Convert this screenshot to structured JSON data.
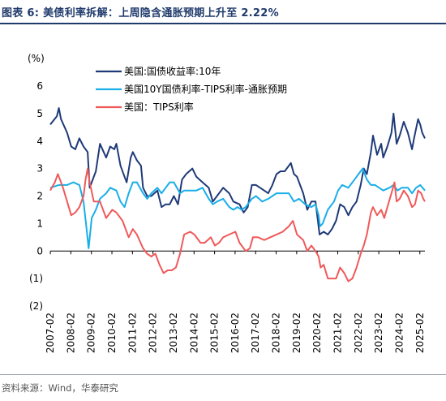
{
  "header": {
    "title": "图表 6:  美债利率拆解：上周隐含通胀预期上升至 2.22%"
  },
  "footer": {
    "source": "资料来源：Wind，华泰研究"
  },
  "chart_data": {
    "type": "line",
    "unit_label": "(%)",
    "ylim": [
      -2,
      6
    ],
    "yticks": [
      6,
      5,
      4,
      3,
      2,
      1,
      0,
      -1,
      -2
    ],
    "ytick_labels": [
      "6",
      "5",
      "4",
      "3",
      "2",
      "1",
      "0",
      "(1)",
      "(2)"
    ],
    "xlim": [
      2007.08,
      2025.33
    ],
    "xticks": [
      "2007-02",
      "2008-02",
      "2009-02",
      "2010-02",
      "2011-02",
      "2012-02",
      "2013-02",
      "2014-02",
      "2015-02",
      "2016-02",
      "2017-02",
      "2018-02",
      "2019-02",
      "2020-02",
      "2021-02",
      "2022-02",
      "2023-02",
      "2024-02",
      "2025-02"
    ],
    "series": [
      {
        "name": "美国:国债收益率:10年",
        "color": "#1f3a78",
        "points": [
          [
            2007.08,
            4.6
          ],
          [
            2007.4,
            4.9
          ],
          [
            2007.5,
            5.2
          ],
          [
            2007.6,
            4.8
          ],
          [
            2007.9,
            4.3
          ],
          [
            2008.1,
            3.8
          ],
          [
            2008.3,
            3.7
          ],
          [
            2008.5,
            4.1
          ],
          [
            2008.7,
            3.8
          ],
          [
            2008.9,
            3.6
          ],
          [
            2009.0,
            2.3
          ],
          [
            2009.1,
            2.5
          ],
          [
            2009.3,
            2.9
          ],
          [
            2009.5,
            3.9
          ],
          [
            2009.8,
            3.4
          ],
          [
            2010.0,
            3.8
          ],
          [
            2010.2,
            3.7
          ],
          [
            2010.3,
            3.9
          ],
          [
            2010.5,
            3.1
          ],
          [
            2010.7,
            2.7
          ],
          [
            2010.8,
            2.5
          ],
          [
            2011.0,
            3.4
          ],
          [
            2011.1,
            3.6
          ],
          [
            2011.3,
            3.3
          ],
          [
            2011.5,
            3.1
          ],
          [
            2011.6,
            2.3
          ],
          [
            2011.8,
            2.0
          ],
          [
            2012.0,
            2.0
          ],
          [
            2012.3,
            2.2
          ],
          [
            2012.5,
            1.6
          ],
          [
            2012.7,
            1.7
          ],
          [
            2012.9,
            1.7
          ],
          [
            2013.1,
            2.0
          ],
          [
            2013.3,
            1.7
          ],
          [
            2013.5,
            2.6
          ],
          [
            2013.7,
            2.8
          ],
          [
            2014.0,
            3.0
          ],
          [
            2014.2,
            2.7
          ],
          [
            2014.5,
            2.5
          ],
          [
            2014.8,
            2.3
          ],
          [
            2015.0,
            1.8
          ],
          [
            2015.2,
            2.0
          ],
          [
            2015.5,
            2.3
          ],
          [
            2015.8,
            2.1
          ],
          [
            2016.0,
            1.8
          ],
          [
            2016.3,
            1.7
          ],
          [
            2016.5,
            1.4
          ],
          [
            2016.7,
            1.6
          ],
          [
            2016.9,
            2.4
          ],
          [
            2017.1,
            2.4
          ],
          [
            2017.3,
            2.3
          ],
          [
            2017.5,
            2.2
          ],
          [
            2017.7,
            2.1
          ],
          [
            2017.9,
            2.4
          ],
          [
            2018.1,
            2.8
          ],
          [
            2018.3,
            2.9
          ],
          [
            2018.5,
            2.9
          ],
          [
            2018.8,
            3.2
          ],
          [
            2018.95,
            2.8
          ],
          [
            2019.1,
            2.7
          ],
          [
            2019.4,
            2.1
          ],
          [
            2019.6,
            1.5
          ],
          [
            2019.8,
            1.8
          ],
          [
            2020.0,
            1.8
          ],
          [
            2020.1,
            1.2
          ],
          [
            2020.2,
            0.6
          ],
          [
            2020.4,
            0.7
          ],
          [
            2020.6,
            0.6
          ],
          [
            2020.8,
            0.8
          ],
          [
            2021.0,
            1.1
          ],
          [
            2021.2,
            1.7
          ],
          [
            2021.4,
            1.6
          ],
          [
            2021.6,
            1.3
          ],
          [
            2021.8,
            1.6
          ],
          [
            2022.0,
            1.8
          ],
          [
            2022.2,
            2.4
          ],
          [
            2022.35,
            3.0
          ],
          [
            2022.5,
            2.8
          ],
          [
            2022.7,
            3.6
          ],
          [
            2022.8,
            4.2
          ],
          [
            2023.0,
            3.5
          ],
          [
            2023.2,
            3.9
          ],
          [
            2023.3,
            3.4
          ],
          [
            2023.5,
            3.8
          ],
          [
            2023.7,
            4.3
          ],
          [
            2023.8,
            5.0
          ],
          [
            2023.95,
            3.9
          ],
          [
            2024.1,
            4.2
          ],
          [
            2024.3,
            4.7
          ],
          [
            2024.5,
            4.3
          ],
          [
            2024.7,
            3.7
          ],
          [
            2024.8,
            4.1
          ],
          [
            2025.0,
            4.8
          ],
          [
            2025.1,
            4.6
          ],
          [
            2025.2,
            4.3
          ],
          [
            2025.33,
            4.1
          ]
        ]
      },
      {
        "name": "美国10Y国债利率-TIPS利率-通胀预期",
        "color": "#19aee8",
        "points": [
          [
            2007.08,
            2.3
          ],
          [
            2007.5,
            2.4
          ],
          [
            2007.9,
            2.4
          ],
          [
            2008.2,
            2.5
          ],
          [
            2008.5,
            2.4
          ],
          [
            2008.7,
            1.8
          ],
          [
            2008.85,
            0.8
          ],
          [
            2008.95,
            0.1
          ],
          [
            2009.1,
            1.2
          ],
          [
            2009.3,
            1.5
          ],
          [
            2009.5,
            1.9
          ],
          [
            2009.8,
            2.1
          ],
          [
            2010.0,
            2.3
          ],
          [
            2010.3,
            2.2
          ],
          [
            2010.5,
            1.8
          ],
          [
            2010.7,
            1.6
          ],
          [
            2010.9,
            2.1
          ],
          [
            2011.1,
            2.5
          ],
          [
            2011.3,
            2.5
          ],
          [
            2011.6,
            2.1
          ],
          [
            2011.8,
            1.9
          ],
          [
            2012.0,
            2.1
          ],
          [
            2012.3,
            2.3
          ],
          [
            2012.5,
            2.1
          ],
          [
            2012.7,
            2.3
          ],
          [
            2012.9,
            2.5
          ],
          [
            2013.1,
            2.5
          ],
          [
            2013.4,
            2.1
          ],
          [
            2013.6,
            2.2
          ],
          [
            2013.9,
            2.2
          ],
          [
            2014.2,
            2.2
          ],
          [
            2014.5,
            2.3
          ],
          [
            2014.8,
            1.9
          ],
          [
            2015.0,
            1.7
          ],
          [
            2015.2,
            1.8
          ],
          [
            2015.5,
            1.9
          ],
          [
            2015.8,
            1.6
          ],
          [
            2016.0,
            1.5
          ],
          [
            2016.2,
            1.6
          ],
          [
            2016.4,
            1.5
          ],
          [
            2016.6,
            1.6
          ],
          [
            2016.9,
            1.9
          ],
          [
            2017.1,
            2.0
          ],
          [
            2017.4,
            1.8
          ],
          [
            2017.7,
            1.9
          ],
          [
            2017.9,
            2.0
          ],
          [
            2018.1,
            2.1
          ],
          [
            2018.4,
            2.1
          ],
          [
            2018.7,
            2.1
          ],
          [
            2018.95,
            1.8
          ],
          [
            2019.2,
            1.9
          ],
          [
            2019.5,
            1.7
          ],
          [
            2019.8,
            1.6
          ],
          [
            2020.0,
            1.7
          ],
          [
            2020.15,
            1.3
          ],
          [
            2020.22,
            0.9
          ],
          [
            2020.35,
            1.0
          ],
          [
            2020.6,
            1.5
          ],
          [
            2020.9,
            1.8
          ],
          [
            2021.1,
            2.2
          ],
          [
            2021.3,
            2.4
          ],
          [
            2021.6,
            2.3
          ],
          [
            2021.9,
            2.6
          ],
          [
            2022.1,
            2.8
          ],
          [
            2022.3,
            3.0
          ],
          [
            2022.5,
            2.6
          ],
          [
            2022.7,
            2.4
          ],
          [
            2022.9,
            2.4
          ],
          [
            2023.1,
            2.3
          ],
          [
            2023.3,
            2.2
          ],
          [
            2023.6,
            2.3
          ],
          [
            2023.8,
            2.4
          ],
          [
            2024.0,
            2.2
          ],
          [
            2024.2,
            2.3
          ],
          [
            2024.5,
            2.3
          ],
          [
            2024.7,
            2.1
          ],
          [
            2024.9,
            2.3
          ],
          [
            2025.1,
            2.4
          ],
          [
            2025.33,
            2.2
          ]
        ]
      },
      {
        "name": "美国：TIPS利率",
        "color": "#f0595a",
        "points": [
          [
            2007.08,
            2.2
          ],
          [
            2007.3,
            2.5
          ],
          [
            2007.45,
            2.8
          ],
          [
            2007.7,
            2.3
          ],
          [
            2007.9,
            1.8
          ],
          [
            2008.1,
            1.3
          ],
          [
            2008.3,
            1.4
          ],
          [
            2008.5,
            1.6
          ],
          [
            2008.7,
            2.0
          ],
          [
            2008.8,
            2.6
          ],
          [
            2008.9,
            3.0
          ],
          [
            2009.0,
            2.5
          ],
          [
            2009.2,
            1.8
          ],
          [
            2009.5,
            1.8
          ],
          [
            2009.8,
            1.2
          ],
          [
            2010.1,
            1.5
          ],
          [
            2010.3,
            1.4
          ],
          [
            2010.6,
            1.1
          ],
          [
            2010.9,
            0.5
          ],
          [
            2011.1,
            0.8
          ],
          [
            2011.3,
            0.6
          ],
          [
            2011.6,
            0.1
          ],
          [
            2011.8,
            -0.1
          ],
          [
            2012.0,
            -0.2
          ],
          [
            2012.2,
            -0.1
          ],
          [
            2012.4,
            -0.5
          ],
          [
            2012.6,
            -0.8
          ],
          [
            2012.8,
            -0.7
          ],
          [
            2013.0,
            -0.7
          ],
          [
            2013.2,
            -0.6
          ],
          [
            2013.4,
            -0.1
          ],
          [
            2013.6,
            0.6
          ],
          [
            2013.9,
            0.7
          ],
          [
            2014.1,
            0.6
          ],
          [
            2014.4,
            0.3
          ],
          [
            2014.6,
            0.3
          ],
          [
            2014.9,
            0.5
          ],
          [
            2015.1,
            0.2
          ],
          [
            2015.3,
            0.3
          ],
          [
            2015.5,
            0.5
          ],
          [
            2015.8,
            0.6
          ],
          [
            2016.1,
            0.7
          ],
          [
            2016.3,
            0.3
          ],
          [
            2016.6,
            0.0
          ],
          [
            2016.8,
            0.1
          ],
          [
            2016.95,
            0.5
          ],
          [
            2017.2,
            0.5
          ],
          [
            2017.5,
            0.4
          ],
          [
            2017.8,
            0.5
          ],
          [
            2018.1,
            0.6
          ],
          [
            2018.4,
            0.7
          ],
          [
            2018.7,
            0.9
          ],
          [
            2018.9,
            1.1
          ],
          [
            2019.1,
            0.6
          ],
          [
            2019.4,
            0.4
          ],
          [
            2019.6,
            0.0
          ],
          [
            2019.8,
            0.2
          ],
          [
            2020.0,
            0.0
          ],
          [
            2020.15,
            -0.2
          ],
          [
            2020.25,
            -0.6
          ],
          [
            2020.4,
            -0.5
          ],
          [
            2020.6,
            -1.0
          ],
          [
            2020.8,
            -1.0
          ],
          [
            2021.0,
            -1.0
          ],
          [
            2021.2,
            -0.6
          ],
          [
            2021.4,
            -0.8
          ],
          [
            2021.6,
            -1.1
          ],
          [
            2021.8,
            -1.0
          ],
          [
            2022.0,
            -0.6
          ],
          [
            2022.2,
            -0.1
          ],
          [
            2022.35,
            0.2
          ],
          [
            2022.5,
            0.6
          ],
          [
            2022.7,
            1.4
          ],
          [
            2022.8,
            1.6
          ],
          [
            2023.0,
            1.3
          ],
          [
            2023.2,
            1.5
          ],
          [
            2023.35,
            1.2
          ],
          [
            2023.5,
            1.6
          ],
          [
            2023.7,
            2.1
          ],
          [
            2023.85,
            2.5
          ],
          [
            2023.95,
            1.8
          ],
          [
            2024.1,
            1.9
          ],
          [
            2024.3,
            2.2
          ],
          [
            2024.5,
            2.0
          ],
          [
            2024.7,
            1.6
          ],
          [
            2024.85,
            1.7
          ],
          [
            2025.0,
            2.2
          ],
          [
            2025.15,
            2.1
          ],
          [
            2025.25,
            1.9
          ],
          [
            2025.33,
            1.8
          ]
        ]
      }
    ]
  }
}
